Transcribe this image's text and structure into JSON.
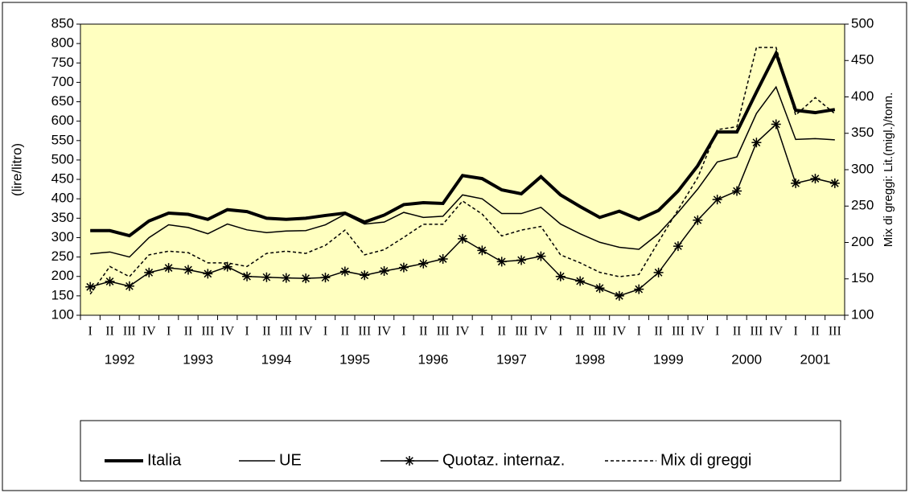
{
  "chart_data": {
    "type": "line",
    "y_label": "(lire/litro)",
    "y2_label": "Mix di greggi: Lit.(migl.)/tonn.",
    "categories": [
      "I",
      "II",
      "III",
      "IV",
      "I",
      "II",
      "III",
      "IV",
      "I",
      "II",
      "III",
      "IV",
      "I",
      "II",
      "III",
      "IV",
      "I",
      "II",
      "III",
      "IV",
      "I",
      "II",
      "III",
      "IV",
      "I",
      "II",
      "III",
      "IV",
      "I",
      "II",
      "III",
      "IV",
      "I",
      "II",
      "III",
      "IV",
      "I",
      "II",
      "III"
    ],
    "years": [
      "1992",
      "1993",
      "1994",
      "1995",
      "1996",
      "1997",
      "1998",
      "1999",
      "2000",
      "2001"
    ],
    "ylim": [
      100,
      850
    ],
    "yticks": [
      100,
      150,
      200,
      250,
      300,
      350,
      400,
      450,
      500,
      550,
      600,
      650,
      700,
      750,
      800,
      850
    ],
    "y2lim": [
      100,
      500
    ],
    "y2ticks": [
      100,
      150,
      200,
      250,
      300,
      350,
      400,
      450,
      500
    ],
    "background": "#ffffc0",
    "series": [
      {
        "name": "Italia",
        "color": "#000000",
        "style": "thick",
        "values": [
          318,
          318,
          305,
          343,
          363,
          360,
          347,
          372,
          367,
          350,
          347,
          350,
          357,
          363,
          340,
          358,
          385,
          390,
          388,
          460,
          452,
          423,
          413,
          457,
          410,
          380,
          352,
          368,
          347,
          370,
          420,
          485,
          572,
          572,
          675,
          775,
          628,
          622,
          630
        ]
      },
      {
        "name": "UE",
        "color": "#000000",
        "style": "solid",
        "values": [
          258,
          263,
          250,
          300,
          333,
          326,
          310,
          335,
          320,
          313,
          317,
          318,
          333,
          360,
          335,
          340,
          365,
          352,
          355,
          410,
          400,
          362,
          362,
          378,
          335,
          310,
          288,
          275,
          270,
          310,
          365,
          425,
          495,
          508,
          620,
          688,
          553,
          555,
          552
        ]
      },
      {
        "name": "Quotaz. internaz.",
        "color": "#000000",
        "style": "solid",
        "marker": "asterisk",
        "values": [
          173,
          187,
          175,
          210,
          222,
          217,
          207,
          225,
          200,
          198,
          196,
          195,
          197,
          213,
          203,
          214,
          223,
          233,
          245,
          297,
          267,
          238,
          242,
          252,
          200,
          188,
          170,
          150,
          167,
          210,
          278,
          345,
          398,
          420,
          545,
          592,
          440,
          452,
          440
        ]
      },
      {
        "name": "Mix di greggi",
        "color": "#000000",
        "style": "dotted",
        "axis": "y2",
        "values": [
          129,
          167,
          153,
          183,
          188,
          186,
          172,
          172,
          167,
          185,
          188,
          185,
          196,
          217,
          183,
          190,
          207,
          225,
          225,
          257,
          239,
          209,
          217,
          222,
          183,
          172,
          159,
          153,
          156,
          201,
          245,
          289,
          355,
          359,
          468,
          468,
          375,
          399,
          377
        ]
      }
    ]
  }
}
